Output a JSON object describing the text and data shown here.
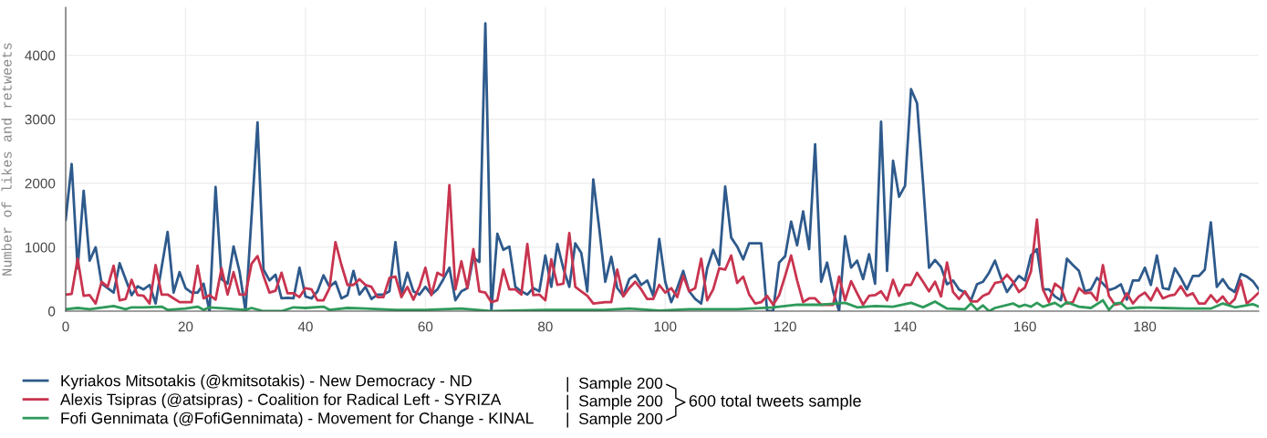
{
  "chart_data": {
    "type": "line",
    "ylabel": "Number of likes and retweets",
    "xlim": [
      0,
      199
    ],
    "ylim": [
      0,
      4750
    ],
    "xticks": [
      0,
      20,
      40,
      60,
      80,
      100,
      120,
      140,
      160,
      180
    ],
    "yticks": [
      0,
      1000,
      2000,
      3000,
      4000
    ],
    "grid": true,
    "legend": "bottom left",
    "marker": "none",
    "line_style": "solid",
    "x": [
      0,
      1,
      2,
      3,
      4,
      5,
      6,
      8,
      9,
      11,
      12,
      13,
      14,
      15,
      17,
      18,
      19,
      20,
      21,
      22,
      23,
      24,
      25,
      26,
      27,
      28,
      29,
      30,
      32,
      33,
      34,
      35,
      36,
      37,
      38,
      39,
      40,
      41,
      42,
      43,
      44,
      45,
      46,
      47,
      48,
      49,
      50,
      51,
      52,
      53,
      54,
      55,
      56,
      57,
      58,
      59,
      60,
      61,
      62,
      63,
      64,
      65,
      66,
      67,
      68,
      69,
      70,
      71,
      72,
      73,
      74,
      75,
      76,
      77,
      78,
      79,
      80,
      81,
      82,
      83,
      84,
      85,
      86,
      87,
      88,
      89,
      90,
      91,
      92,
      93,
      94,
      95,
      96,
      97,
      98,
      99,
      100,
      101,
      102,
      103,
      104,
      105,
      106,
      107,
      108,
      109,
      110,
      111,
      112,
      113,
      114,
      115,
      116,
      117,
      118,
      119,
      120,
      121,
      122,
      123,
      124,
      125,
      126,
      127,
      128,
      129,
      130,
      131,
      132,
      133,
      134,
      135,
      136,
      137,
      138,
      139,
      140,
      141,
      142,
      143,
      144,
      145,
      146,
      147,
      148,
      149,
      150,
      151,
      152,
      153,
      154,
      155,
      156,
      157,
      158,
      159,
      160,
      161,
      162,
      163,
      164,
      165,
      166,
      167,
      168,
      169,
      170,
      171,
      172,
      173,
      174,
      175,
      176,
      177,
      178,
      179,
      180,
      181,
      182,
      183,
      184,
      185,
      186,
      187,
      188,
      189,
      190,
      191,
      192,
      193,
      194,
      195,
      196,
      197,
      198,
      199
    ],
    "series": [
      {
        "name": "Kyriakos Mitsotakis (@kmitsotakis) - New Democracy - ND",
        "color": "#2e5a8c",
        "values": [
          1430,
          2300,
          670,
          1880,
          790,
          1000,
          430,
          290,
          750,
          250,
          390,
          340,
          410,
          120,
          1240,
          290,
          610,
          360,
          290,
          290,
          430,
          0,
          1940,
          500,
          430,
          1010,
          620,
          0,
          2950,
          650,
          480,
          570,
          200,
          210,
          200,
          680,
          230,
          200,
          310,
          560,
          380,
          460,
          200,
          250,
          630,
          260,
          380,
          190,
          260,
          260,
          310,
          1080,
          260,
          600,
          310,
          260,
          380,
          260,
          340,
          500,
          680,
          170,
          310,
          360,
          840,
          770,
          4500,
          0,
          1210,
          960,
          1010,
          380,
          310,
          260,
          360,
          310,
          870,
          380,
          1050,
          670,
          380,
          1060,
          910,
          310,
          2060,
          1290,
          460,
          850,
          360,
          240,
          500,
          570,
          410,
          480,
          240,
          1130,
          460,
          140,
          360,
          630,
          310,
          190,
          120,
          670,
          960,
          720,
          1950,
          1150,
          1010,
          810,
          1060,
          1060,
          1060,
          0,
          0,
          760,
          860,
          1400,
          1030,
          1560,
          970,
          2610,
          460,
          760,
          310,
          0,
          1170,
          680,
          790,
          500,
          890,
          430,
          2960,
          630,
          2350,
          1790,
          1960,
          3470,
          3250,
          2010,
          680,
          800,
          690,
          420,
          480,
          340,
          290,
          170,
          420,
          460,
          600,
          790,
          520,
          300,
          430,
          550,
          480,
          870,
          970,
          340,
          340,
          230,
          170,
          820,
          720,
          630,
          310,
          340,
          520,
          430,
          330,
          360,
          420,
          180,
          480,
          480,
          680,
          410,
          870,
          360,
          340,
          670,
          520,
          340,
          550,
          550,
          650,
          1390,
          380,
          500,
          360,
          300,
          580,
          540,
          470,
          340
        ]
      },
      {
        "name": "Alexis Tsipras (@atsipras) - Coalition for Radical Left - SYRIZA",
        "color": "#c8344f",
        "x": [
          0,
          1,
          2,
          3,
          4,
          5,
          6,
          7,
          8,
          9,
          10,
          11,
          12,
          13,
          14,
          15,
          16,
          17,
          18,
          19,
          21,
          22,
          23,
          24,
          25,
          26,
          27,
          28,
          29,
          30,
          31,
          32,
          33,
          34,
          35,
          36,
          37,
          38,
          39,
          40,
          41,
          42,
          43,
          44,
          45,
          46,
          47,
          48,
          49,
          50,
          51,
          52,
          53,
          54,
          55,
          56,
          57,
          58,
          59,
          60,
          61,
          62,
          63,
          64,
          65,
          66,
          67,
          68,
          69,
          70,
          71,
          72,
          73,
          74,
          75,
          76,
          77,
          78,
          79,
          80,
          81,
          82,
          83,
          84,
          85,
          86,
          87,
          88,
          89,
          90,
          91,
          92,
          93,
          94,
          95,
          96,
          97,
          98,
          99,
          100,
          101,
          102,
          103,
          104,
          105,
          106,
          107,
          108,
          109,
          110,
          111,
          112,
          113,
          114,
          115,
          116,
          117,
          118,
          119,
          120,
          121,
          122,
          123,
          124,
          125,
          126,
          127,
          128,
          129,
          130,
          131,
          132,
          133,
          134,
          135,
          136,
          137,
          138,
          139,
          140,
          141,
          142,
          143,
          144,
          145,
          146,
          147,
          148,
          149,
          150,
          151,
          152,
          153,
          154,
          155,
          156,
          157,
          158,
          159,
          160,
          161,
          162,
          163,
          164,
          165,
          166,
          167,
          168,
          169,
          170,
          171,
          172,
          173,
          174,
          175,
          176,
          177,
          178,
          179,
          180,
          181,
          182,
          183,
          184,
          185,
          186,
          187,
          188,
          189,
          190,
          191,
          192,
          193,
          194,
          195,
          196,
          197,
          198,
          199
        ],
        "values": [
          260,
          270,
          820,
          240,
          250,
          120,
          460,
          380,
          710,
          170,
          190,
          490,
          250,
          240,
          120,
          720,
          260,
          260,
          200,
          140,
          140,
          710,
          200,
          250,
          180,
          670,
          260,
          610,
          260,
          260,
          740,
          860,
          550,
          290,
          320,
          600,
          280,
          280,
          220,
          360,
          340,
          170,
          170,
          360,
          1080,
          720,
          410,
          410,
          500,
          410,
          380,
          220,
          220,
          520,
          540,
          220,
          380,
          180,
          380,
          680,
          250,
          600,
          550,
          1970,
          340,
          780,
          360,
          970,
          310,
          290,
          140,
          170,
          650,
          340,
          340,
          260,
          1050,
          250,
          260,
          170,
          810,
          410,
          430,
          1220,
          380,
          310,
          240,
          120,
          130,
          140,
          140,
          650,
          230,
          360,
          460,
          340,
          190,
          190,
          410,
          290,
          360,
          220,
          550,
          310,
          360,
          820,
          170,
          340,
          670,
          650,
          870,
          440,
          540,
          260,
          120,
          140,
          240,
          100,
          250,
          550,
          870,
          480,
          140,
          200,
          200,
          100,
          100,
          100,
          540,
          170,
          470,
          280,
          100,
          240,
          250,
          310,
          170,
          490,
          240,
          410,
          410,
          600,
          460,
          310,
          460,
          230,
          760,
          300,
          190,
          310,
          150,
          150,
          240,
          280,
          440,
          460,
          570,
          460,
          300,
          370,
          620,
          1430,
          340,
          140,
          430,
          360,
          120,
          140,
          360,
          280,
          290,
          170,
          720,
          240,
          100,
          120,
          280,
          120,
          230,
          290,
          170,
          360,
          200,
          240,
          260,
          390,
          240,
          280,
          120,
          120,
          250,
          140,
          230,
          100,
          190,
          480,
          120,
          200,
          290
        ]
      },
      {
        "name": "Fofi Gennimata (@FofiGennimata) - Movement for Change - KINAL",
        "color": "#2e9a5a",
        "x": [
          0,
          2,
          4,
          8,
          10,
          11,
          13,
          16,
          17,
          20,
          22,
          23,
          24,
          30,
          31,
          33,
          36,
          38,
          40,
          43,
          44,
          47,
          50,
          55,
          60,
          66,
          70,
          71,
          80,
          90,
          94,
          99,
          104,
          112,
          118,
          122,
          126,
          130,
          132,
          135,
          138,
          141,
          143,
          145,
          147,
          150,
          151,
          152,
          153,
          154,
          155,
          158,
          159,
          160,
          161,
          162,
          163,
          165,
          166,
          167,
          169,
          171,
          173,
          174,
          175,
          176,
          177,
          179,
          183,
          187,
          191,
          193,
          195,
          198,
          199
        ],
        "values": [
          30,
          50,
          30,
          80,
          30,
          60,
          60,
          70,
          20,
          40,
          70,
          20,
          60,
          20,
          50,
          0,
          0,
          60,
          50,
          70,
          20,
          50,
          40,
          20,
          20,
          40,
          10,
          0,
          20,
          20,
          40,
          10,
          30,
          30,
          60,
          100,
          100,
          130,
          60,
          80,
          70,
          130,
          60,
          150,
          40,
          30,
          120,
          20,
          90,
          0,
          50,
          120,
          70,
          100,
          70,
          130,
          70,
          130,
          70,
          140,
          70,
          50,
          170,
          20,
          120,
          130,
          40,
          60,
          50,
          40,
          40,
          120,
          60,
          110,
          70
        ]
      }
    ],
    "annotations": [
      "|  Sample 200",
      "|  Sample 200",
      "|  Sample 200",
      "600 total tweets sample"
    ]
  }
}
